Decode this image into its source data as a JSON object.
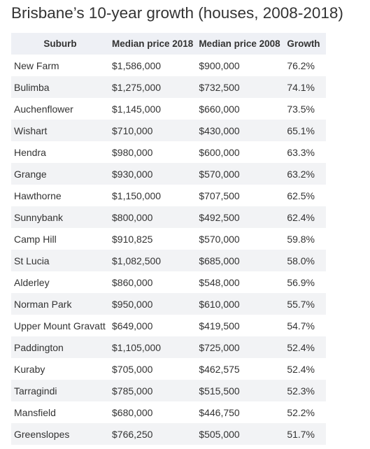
{
  "title": "Brisbane’s 10-year growth (houses, 2008-2018)",
  "table": {
    "headers": [
      "Suburb",
      "Median price 2018",
      "Median price 2008",
      "Growth"
    ],
    "rows": [
      [
        "New Farm",
        "$1,586,000",
        "$900,000",
        "76.2%"
      ],
      [
        "Bulimba",
        "$1,275,000",
        "$732,500",
        "74.1%"
      ],
      [
        "Auchenflower",
        "$1,145,000",
        "$660,000",
        "73.5%"
      ],
      [
        "Wishart",
        "$710,000",
        "$430,000",
        "65.1%"
      ],
      [
        "Hendra",
        "$980,000",
        "$600,000",
        "63.3%"
      ],
      [
        "Grange",
        "$930,000",
        "$570,000",
        "63.2%"
      ],
      [
        "Hawthorne",
        "$1,150,000",
        "$707,500",
        "62.5%"
      ],
      [
        "Sunnybank",
        "$800,000",
        "$492,500",
        "62.4%"
      ],
      [
        "Camp Hill",
        "$910,825",
        "$570,000",
        "59.8%"
      ],
      [
        "St Lucia",
        "$1,082,500",
        "$685,000",
        "58.0%"
      ],
      [
        "Alderley",
        "$860,000",
        "$548,000",
        "56.9%"
      ],
      [
        "Norman Park",
        "$950,000",
        "$610,000",
        "55.7%"
      ],
      [
        "Upper Mount Gravatt",
        "$649,000",
        "$419,500",
        "54.7%"
      ],
      [
        "Paddington",
        "$1,105,000",
        "$725,000",
        "52.4%"
      ],
      [
        "Kuraby",
        "$705,000",
        "$462,575",
        "52.4%"
      ],
      [
        "Tarragindi",
        "$785,000",
        "$515,500",
        "52.3%"
      ],
      [
        "Mansfield",
        "$680,000",
        "$446,750",
        "52.2%"
      ],
      [
        "Greenslopes",
        "$766,250",
        "$505,000",
        "51.7%"
      ]
    ]
  }
}
